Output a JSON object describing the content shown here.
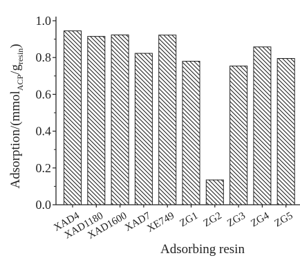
{
  "chart_data": {
    "type": "bar",
    "categories": [
      "XAD4",
      "XAD1180",
      "XAD1600",
      "XAD7",
      "XE749",
      "ZG1",
      "ZG2",
      "ZG3",
      "ZG4",
      "ZG5"
    ],
    "values": [
      0.945,
      0.915,
      0.923,
      0.823,
      0.922,
      0.78,
      0.135,
      0.754,
      0.858,
      0.795
    ],
    "xlabel": "Adsorbing resin",
    "ylabel": {
      "prefix": "Adsorption/(mmol",
      "sub1": "ACP",
      "mid": "/g",
      "sub2": "resin",
      "suffix": ")"
    },
    "ylim": [
      0.0,
      1.0
    ],
    "yticks": [
      "0.0",
      "0.2",
      "0.4",
      "0.6",
      "0.8",
      "1.0"
    ],
    "bar_fill": "hatched",
    "colors": {
      "bar_stroke": "#222222",
      "hatch": "#222222",
      "axis": "#222222"
    },
    "grid": false,
    "legend": "none"
  }
}
